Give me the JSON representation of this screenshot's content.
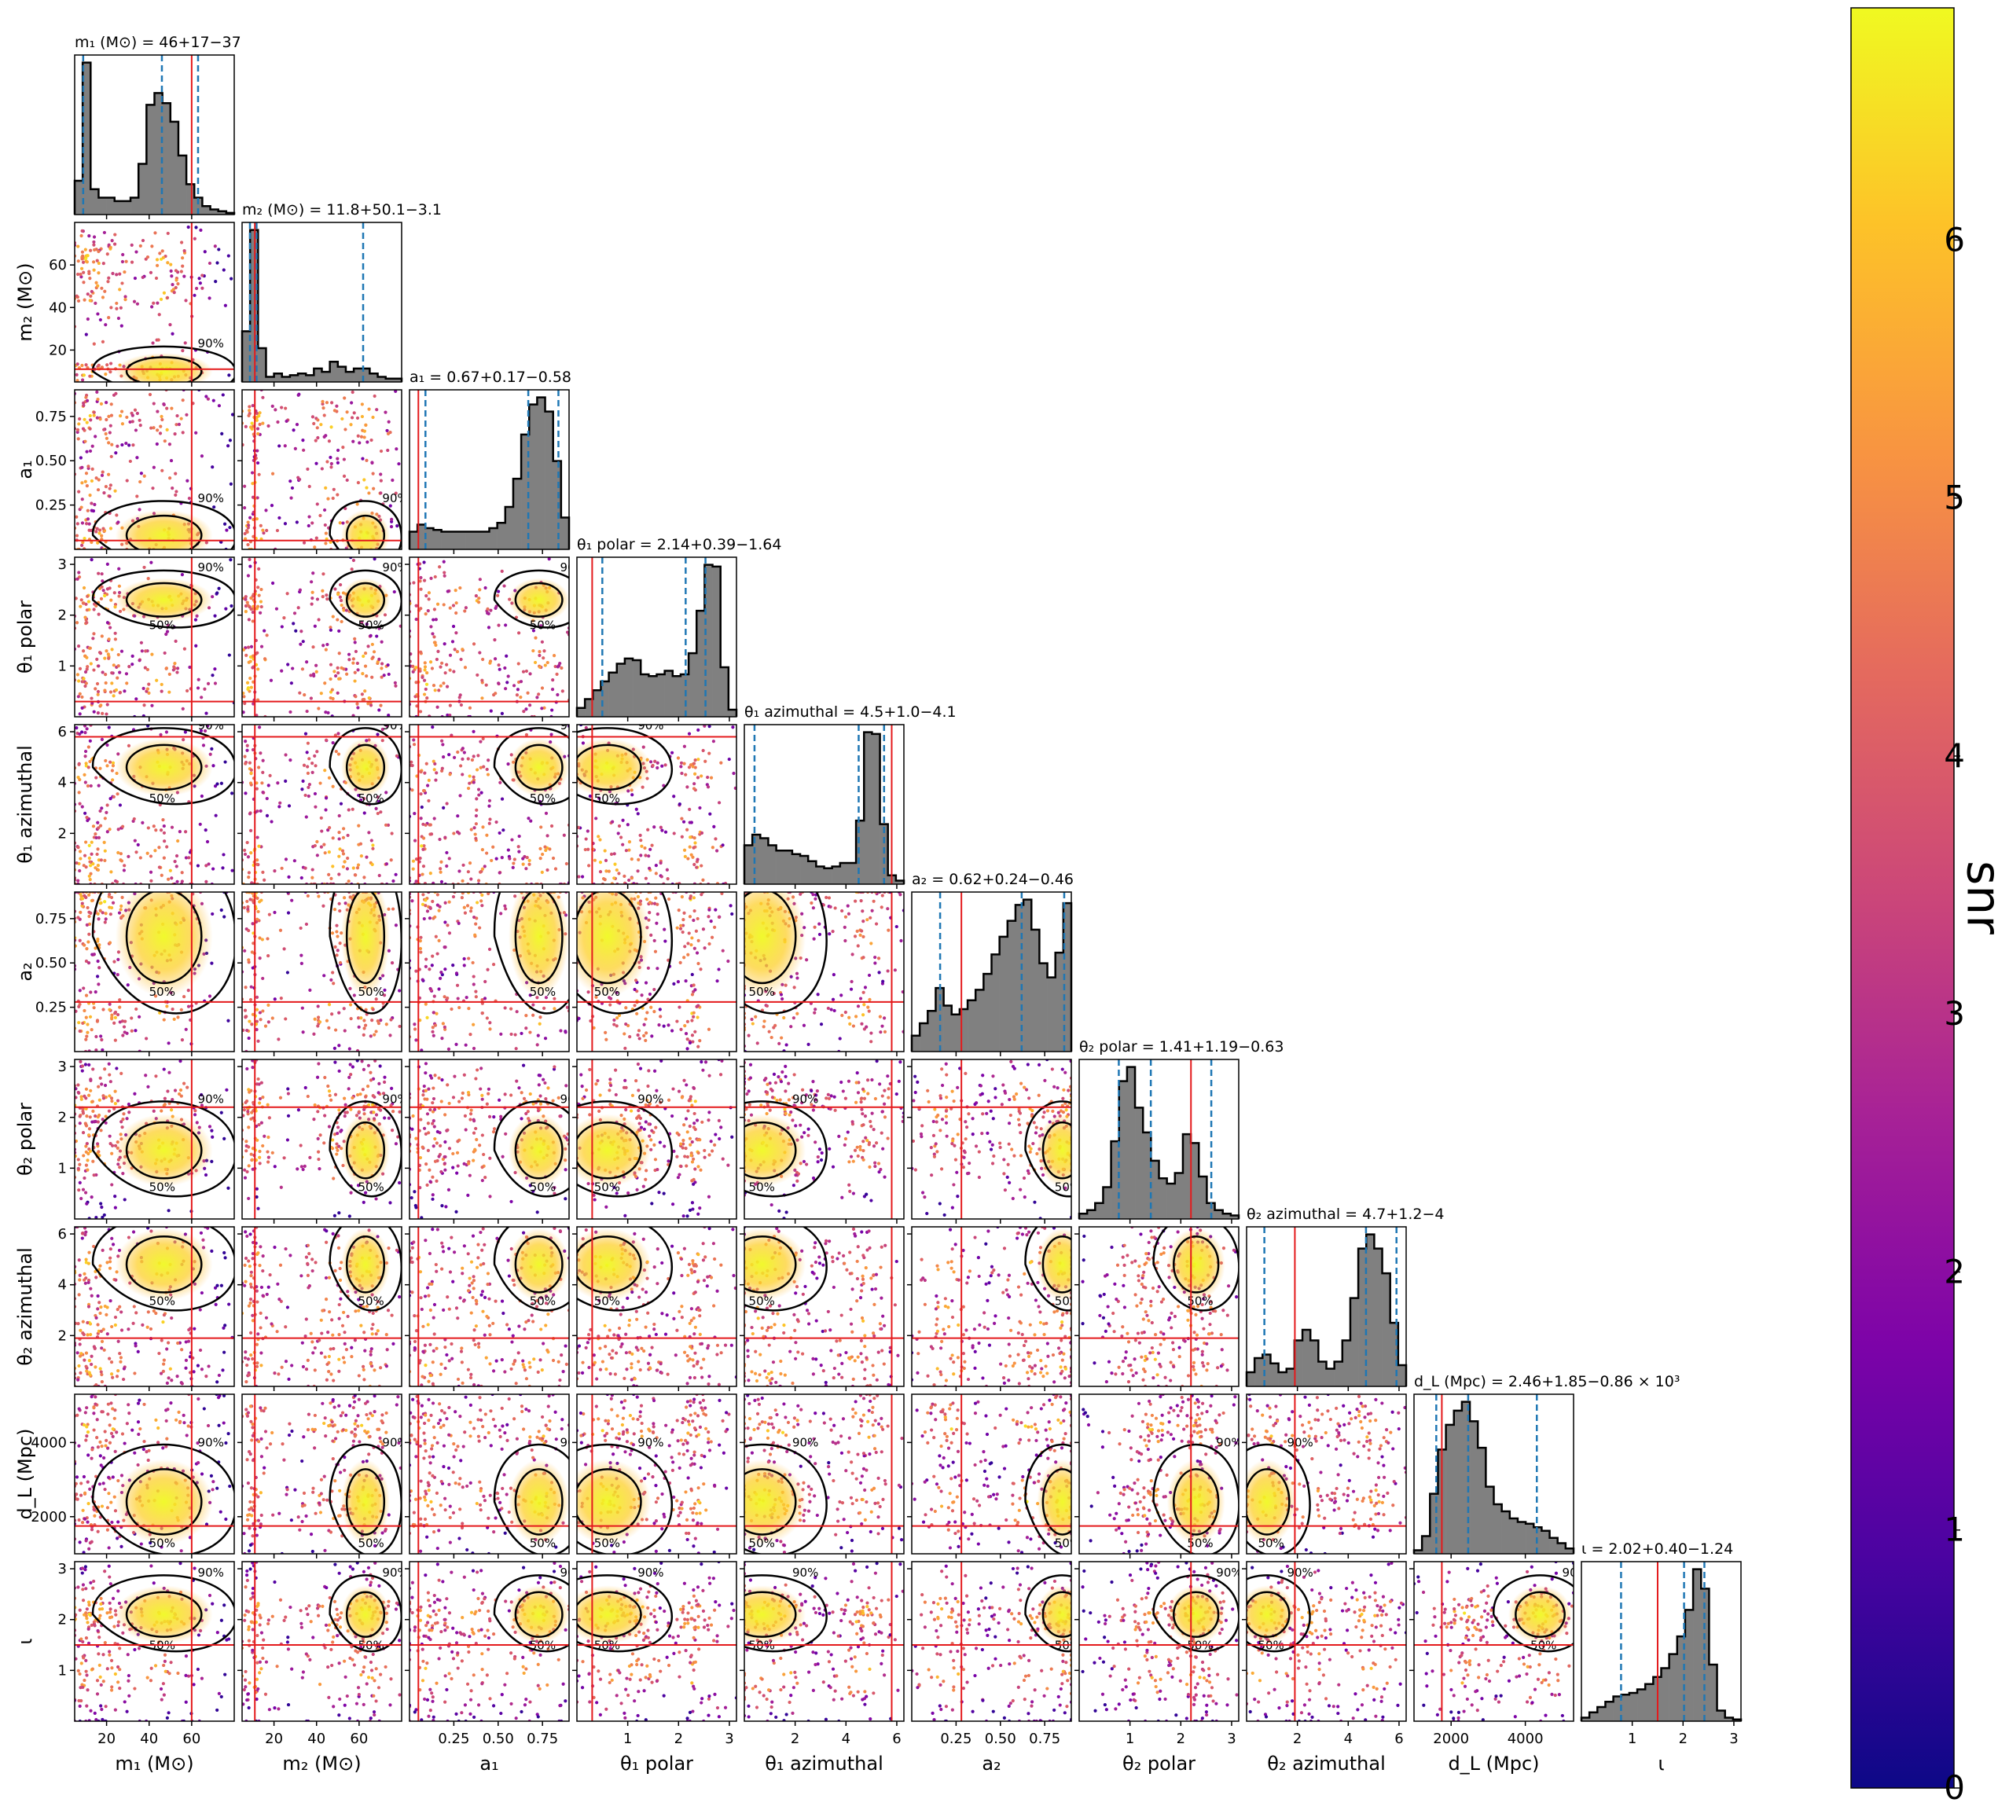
{
  "chart_data": {
    "type": "corner",
    "colorbar": {
      "label": "snr",
      "ticks": [
        0,
        1,
        2,
        3,
        4,
        5,
        6
      ],
      "range": [
        0,
        6.9
      ],
      "colormap": "plasma"
    },
    "contour_levels": [
      "50%",
      "90%"
    ],
    "colors": {
      "histogram_fill": "#808080",
      "credible_interval_line": "#1f77b4",
      "injected_value_line": "#e41a1c",
      "contour": "#000000"
    },
    "parameters": [
      {
        "id": "m1",
        "axis_label": "m₁ (M⊙)",
        "title": "m₁ (M⊙) = 46+17−37",
        "range": [
          5,
          80
        ],
        "ticks": [
          20,
          40,
          60
        ],
        "tick_labels": [
          "20",
          "40",
          "60"
        ],
        "median": 46,
        "lower": 9,
        "upper": 63,
        "injected": 60,
        "hist": [
          2,
          9,
          1.5,
          1,
          1,
          0.8,
          0.8,
          1,
          3,
          6.5,
          7.2,
          6.6,
          5.5,
          3.5,
          1.8,
          1,
          0.5,
          0.3,
          0.2,
          0.1
        ],
        "modes": [
          [
            10,
            3
          ],
          [
            20,
            4
          ],
          [
            47,
            8
          ]
        ]
      },
      {
        "id": "m2",
        "axis_label": "m₂ (M⊙)",
        "title": "m₂ (M⊙) = 11.8+50.1−3.1",
        "range": [
          5,
          80
        ],
        "ticks": [
          20,
          40,
          60
        ],
        "tick_labels": [
          "20",
          "40",
          "60"
        ],
        "median": 11.8,
        "lower": 8.7,
        "upper": 61.9,
        "injected": 11,
        "hist": [
          3,
          9,
          2,
          0.3,
          0.5,
          0.3,
          0.4,
          0.5,
          0.4,
          0.8,
          0.6,
          1.2,
          0.9,
          0.6,
          0.8,
          0.8,
          0.5,
          0.3,
          0.2,
          0.2
        ],
        "modes": [
          [
            10,
            2
          ],
          [
            47,
            6
          ],
          [
            63,
            4
          ]
        ]
      },
      {
        "id": "a1",
        "axis_label": "a₁",
        "title": "a₁ = 0.67+0.17−0.58",
        "range": [
          0,
          0.9
        ],
        "ticks": [
          0.25,
          0.5,
          0.75
        ],
        "tick_labels": [
          "0.25",
          "0.50",
          "0.75"
        ],
        "median": 0.67,
        "lower": 0.09,
        "upper": 0.84,
        "injected": 0.05,
        "hist": [
          1,
          1.4,
          1.2,
          1.1,
          1,
          1,
          1,
          1,
          1,
          1,
          1.2,
          1.5,
          2.4,
          4,
          6.5,
          8.2,
          8.6,
          7.8,
          5,
          1.8
        ],
        "modes": [
          [
            0.08,
            0.05
          ],
          [
            0.35,
            0.1
          ],
          [
            0.73,
            0.06
          ]
        ]
      },
      {
        "id": "theta1",
        "axis_label": "θ₁ polar",
        "title": "θ₁ polar = 2.14+0.39−1.64",
        "range": [
          0,
          3.14
        ],
        "ticks": [
          1,
          2,
          3
        ],
        "tick_labels": [
          "1",
          "2",
          "3"
        ],
        "median": 2.14,
        "lower": 0.5,
        "upper": 2.53,
        "injected": 0.3,
        "hist": [
          0.5,
          1,
          1.5,
          2,
          2.5,
          3,
          3.3,
          3.2,
          2.4,
          2.3,
          2.4,
          2.6,
          2.3,
          2.4,
          3.6,
          6,
          8.6,
          8.5,
          2.8,
          0.4
        ],
        "modes": [
          [
            2.3,
            0.15
          ],
          [
            1.1,
            0.3
          ],
          [
            0.6,
            0.3
          ]
        ]
      },
      {
        "id": "phi1",
        "axis_label": "θ₁ azimuthal",
        "title": "θ₁ azimuthal = 4.5+1.0−4.1",
        "range": [
          0,
          6.28
        ],
        "ticks": [
          2,
          4,
          6
        ],
        "tick_labels": [
          "2",
          "4",
          "6"
        ],
        "median": 4.5,
        "lower": 0.4,
        "upper": 5.5,
        "injected": 5.8,
        "hist": [
          2.2,
          2.8,
          2.6,
          2.2,
          1.9,
          1.9,
          1.7,
          1.6,
          1.3,
          1,
          0.9,
          1,
          1.2,
          1.2,
          3.6,
          8.6,
          8.5,
          3.4,
          0.5,
          0.2
        ],
        "modes": [
          [
            4.6,
            0.4
          ],
          [
            1.5,
            1
          ],
          [
            0.7,
            0.6
          ]
        ]
      },
      {
        "id": "a2",
        "axis_label": "a₂",
        "title": "a₂ = 0.62+0.24−0.46",
        "range": [
          0,
          0.9
        ],
        "ticks": [
          0.25,
          0.5,
          0.75
        ],
        "tick_labels": [
          "0.25",
          "0.50",
          "0.75"
        ],
        "median": 0.62,
        "lower": 0.16,
        "upper": 0.86,
        "injected": 0.28,
        "hist": [
          0.9,
          1.6,
          2.3,
          3.6,
          2.6,
          2.1,
          2.4,
          2.9,
          3.5,
          4.4,
          5.5,
          6.5,
          7.4,
          8.3,
          8.6,
          6.9,
          5,
          4.2,
          5.6,
          8.4
        ],
        "modes": [
          [
            0.65,
            0.12
          ],
          [
            0.2,
            0.06
          ],
          [
            0.85,
            0.05
          ]
        ]
      },
      {
        "id": "theta2",
        "axis_label": "θ₂ polar",
        "title": "θ₂ polar = 1.41+1.19−0.63",
        "range": [
          0,
          3.14
        ],
        "ticks": [
          1,
          2,
          3
        ],
        "tick_labels": [
          "1",
          "2",
          "3"
        ],
        "median": 1.41,
        "lower": 0.78,
        "upper": 2.6,
        "injected": 2.2,
        "hist": [
          0.3,
          0.5,
          0.9,
          1.8,
          4.4,
          7.8,
          8.6,
          6.3,
          4.9,
          3.3,
          2.3,
          2,
          2.6,
          4.8,
          4.3,
          2.4,
          0.9,
          0.5,
          0.3,
          0.2
        ],
        "modes": [
          [
            1.35,
            0.25
          ],
          [
            2.3,
            0.2
          ]
        ]
      },
      {
        "id": "phi2",
        "axis_label": "θ₂ azimuthal",
        "title": "θ₂ azimuthal = 4.7+1.2−4",
        "range": [
          0,
          6.28
        ],
        "ticks": [
          2,
          4,
          6
        ],
        "tick_labels": [
          "2",
          "4",
          "6"
        ],
        "median": 4.7,
        "lower": 0.7,
        "upper": 5.9,
        "injected": 1.9,
        "hist": [
          0.8,
          1.6,
          1.8,
          1.3,
          0.8,
          1,
          2.6,
          3.2,
          2.6,
          1.4,
          1,
          1.4,
          2.6,
          5,
          7.8,
          8.6,
          7.8,
          6.4,
          3.6,
          1.2
        ],
        "modes": [
          [
            4.8,
            0.5
          ],
          [
            2.5,
            0.6
          ],
          [
            0.8,
            0.4
          ]
        ]
      },
      {
        "id": "dL",
        "axis_label": "d_L (Mpc)",
        "title": "d_L (Mpc) = 2.46+1.85−0.86 × 10³",
        "range": [
          1000,
          5300
        ],
        "ticks": [
          2000,
          4000
        ],
        "tick_labels": [
          "2000",
          "4000"
        ],
        "median": 2460,
        "lower": 1600,
        "upper": 4310,
        "injected": 1750,
        "hist": [
          0.2,
          1,
          3.4,
          5.9,
          7.3,
          8.1,
          8.6,
          7.5,
          6,
          3.8,
          2.8,
          2.4,
          2,
          1.8,
          1.7,
          1.5,
          1.3,
          0.9,
          0.6,
          0.3
        ],
        "modes": [
          [
            2400,
            400
          ],
          [
            4400,
            300
          ]
        ]
      },
      {
        "id": "iota",
        "axis_label": "ι",
        "title": "ι = 2.02+0.40−1.24",
        "range": [
          0,
          3.14
        ],
        "ticks": [
          1,
          2,
          3
        ],
        "tick_labels": [
          "1",
          "2",
          "3"
        ],
        "median": 2.02,
        "lower": 0.78,
        "upper": 2.42,
        "injected": 1.5,
        "hist": [
          0.2,
          0.5,
          0.8,
          1.1,
          1.4,
          1.5,
          1.6,
          1.8,
          2.1,
          2.5,
          3,
          3.8,
          4.8,
          6.3,
          8.6,
          7.5,
          3.2,
          0.6,
          0.2,
          0.1
        ],
        "modes": [
          [
            2.1,
            0.2
          ],
          [
            1,
            0.5
          ]
        ]
      }
    ]
  }
}
